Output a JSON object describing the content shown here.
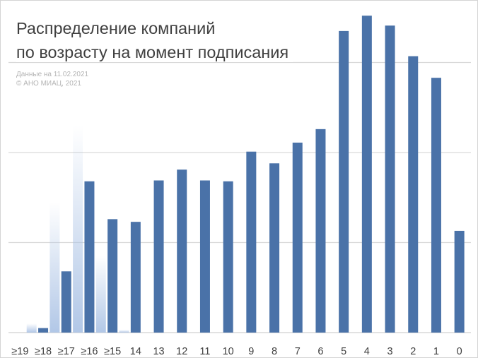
{
  "chart_data": {
    "type": "bar",
    "title_lines": [
      "Распределение компаний",
      "по возрасту на момент подписания"
    ],
    "notes": [
      "Данные на 11.02.2021",
      "© АНО МИАЦ, 2021"
    ],
    "categories": [
      "≥19",
      "≥18",
      "≥17",
      "≥16",
      "≥15",
      "14",
      "13",
      "12",
      "11",
      "10",
      "9",
      "8",
      "7",
      "6",
      "5",
      "4",
      "3",
      "2",
      "1",
      "0"
    ],
    "values": [
      0,
      0.5,
      6.8,
      16.8,
      12.6,
      12.3,
      16.9,
      18.1,
      16.9,
      16.8,
      20.1,
      18.8,
      21.1,
      22.6,
      33.5,
      35.2,
      34.1,
      30.7,
      28.3,
      11.3
    ],
    "ylim": [
      0,
      36
    ],
    "grid": true,
    "gridlines": [
      0,
      10,
      20,
      30
    ],
    "xlabel": "",
    "ylabel": "",
    "bar_color": "#4a72a8",
    "overlay_color": "#a9c1e4",
    "fade_overlays": [
      {
        "category": "≥19",
        "value": 1.0
      },
      {
        "category": "≥18",
        "value": 14.5
      },
      {
        "category": "≥17",
        "value": 23.0
      },
      {
        "category": "≥16",
        "value": 8.5
      },
      {
        "category": "≥15",
        "value": 0.3
      }
    ]
  }
}
